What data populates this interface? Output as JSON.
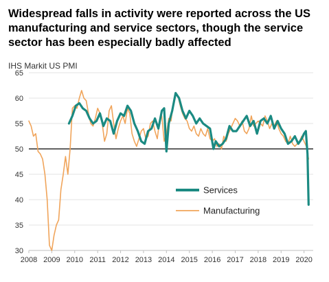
{
  "title": "Widespread falls in activity were reported across the US manufacturing and service sectors, though the service sector has been especially badly affected",
  "subtitle": "IHS Markit US PMI",
  "chart_data": {
    "type": "line",
    "title": "Widespread falls in activity were reported across the US manufacturing and service sectors, though the service sector has been especially badly affected",
    "subtitle": "IHS Markit US PMI",
    "xlabel": "",
    "ylabel": "",
    "xlim": [
      2008.0,
      2020.4
    ],
    "ylim": [
      30,
      65
    ],
    "y_ticks": [
      30,
      35,
      40,
      45,
      50,
      55,
      60,
      65
    ],
    "x_ticks": [
      2008,
      2009,
      2010,
      2011,
      2012,
      2013,
      2014,
      2015,
      2016,
      2017,
      2018,
      2019,
      2020
    ],
    "reference_line": 50,
    "grid": "horizontal",
    "legend_position": "lower-right",
    "series": [
      {
        "name": "Services",
        "color": "#1b8a82",
        "x": [
          2009.75,
          2009.9,
          2010.05,
          2010.2,
          2010.35,
          2010.5,
          2010.65,
          2010.8,
          2010.95,
          2011.1,
          2011.25,
          2011.4,
          2011.55,
          2011.7,
          2011.85,
          2012.0,
          2012.15,
          2012.3,
          2012.45,
          2012.6,
          2012.75,
          2012.9,
          2013.05,
          2013.2,
          2013.35,
          2013.5,
          2013.65,
          2013.8,
          2013.9,
          2014.0,
          2014.1,
          2014.25,
          2014.4,
          2014.55,
          2014.7,
          2014.85,
          2015.0,
          2015.15,
          2015.3,
          2015.45,
          2015.6,
          2015.75,
          2015.9,
          2016.05,
          2016.15,
          2016.3,
          2016.45,
          2016.6,
          2016.75,
          2016.9,
          2017.05,
          2017.2,
          2017.35,
          2017.5,
          2017.65,
          2017.8,
          2017.95,
          2018.1,
          2018.25,
          2018.4,
          2018.55,
          2018.7,
          2018.85,
          2019.0,
          2019.15,
          2019.3,
          2019.45,
          2019.6,
          2019.75,
          2019.9,
          2020.0,
          2020.08,
          2020.15,
          2020.2
        ],
        "values": [
          55.0,
          56.5,
          58.5,
          59.0,
          58.0,
          57.5,
          56.0,
          55.0,
          55.5,
          57.0,
          54.5,
          56.0,
          55.5,
          53.0,
          55.5,
          57.0,
          56.5,
          58.5,
          57.5,
          55.0,
          53.5,
          51.5,
          51.0,
          53.5,
          54.0,
          56.0,
          54.0,
          57.5,
          58.0,
          49.5,
          55.0,
          57.5,
          61.0,
          60.0,
          57.5,
          56.0,
          57.5,
          56.5,
          55.0,
          56.0,
          55.0,
          54.5,
          54.0,
          50.0,
          51.5,
          50.5,
          51.0,
          52.0,
          54.5,
          53.5,
          53.5,
          54.5,
          55.5,
          56.5,
          54.5,
          55.5,
          53.0,
          55.5,
          56.0,
          55.0,
          56.5,
          54.0,
          55.5,
          54.0,
          53.0,
          51.0,
          51.5,
          52.5,
          51.0,
          52.0,
          53.0,
          53.5,
          49.0,
          39.0
        ]
      },
      {
        "name": "Manufacturing",
        "color": "#f0a45a",
        "x": [
          2008.0,
          2008.1,
          2008.2,
          2008.3,
          2008.4,
          2008.5,
          2008.6,
          2008.7,
          2008.8,
          2008.9,
          2009.0,
          2009.1,
          2009.2,
          2009.3,
          2009.4,
          2009.5,
          2009.6,
          2009.7,
          2009.8,
          2009.9,
          2010.0,
          2010.1,
          2010.2,
          2010.3,
          2010.4,
          2010.5,
          2010.6,
          2010.7,
          2010.8,
          2010.9,
          2011.0,
          2011.1,
          2011.2,
          2011.3,
          2011.4,
          2011.5,
          2011.6,
          2011.7,
          2011.8,
          2011.9,
          2012.0,
          2012.1,
          2012.2,
          2012.3,
          2012.4,
          2012.5,
          2012.6,
          2012.7,
          2012.8,
          2012.9,
          2013.0,
          2013.1,
          2013.2,
          2013.3,
          2013.4,
          2013.5,
          2013.6,
          2013.7,
          2013.8,
          2013.9,
          2014.0,
          2014.1,
          2014.2,
          2014.3,
          2014.4,
          2014.5,
          2014.6,
          2014.7,
          2014.8,
          2014.9,
          2015.0,
          2015.1,
          2015.2,
          2015.3,
          2015.4,
          2015.5,
          2015.6,
          2015.7,
          2015.8,
          2015.9,
          2016.0,
          2016.1,
          2016.2,
          2016.3,
          2016.4,
          2016.5,
          2016.6,
          2016.7,
          2016.8,
          2016.9,
          2017.0,
          2017.1,
          2017.2,
          2017.3,
          2017.4,
          2017.5,
          2017.6,
          2017.7,
          2017.8,
          2017.9,
          2018.0,
          2018.1,
          2018.2,
          2018.3,
          2018.4,
          2018.5,
          2018.6,
          2018.7,
          2018.8,
          2018.9,
          2019.0,
          2019.1,
          2019.2,
          2019.3,
          2019.4,
          2019.5,
          2019.6,
          2019.7,
          2019.8,
          2019.9,
          2020.0,
          2020.1,
          2020.2
        ],
        "values": [
          55.5,
          54.5,
          52.5,
          53.0,
          49.5,
          49.0,
          48.0,
          45.0,
          40.0,
          31.0,
          30.0,
          33.0,
          35.0,
          36.0,
          42.0,
          45.0,
          48.5,
          45.0,
          50.0,
          58.0,
          58.5,
          58.0,
          60.0,
          61.5,
          60.0,
          59.5,
          57.0,
          55.0,
          54.5,
          56.0,
          58.0,
          57.0,
          55.0,
          51.5,
          53.0,
          57.5,
          58.5,
          55.0,
          52.0,
          54.0,
          55.5,
          56.5,
          55.0,
          58.0,
          57.0,
          53.0,
          51.5,
          50.5,
          52.0,
          53.5,
          54.0,
          52.0,
          52.5,
          55.0,
          55.5,
          53.5,
          52.0,
          55.5,
          56.5,
          51.5,
          53.0,
          56.0,
          55.5,
          59.0,
          61.0,
          60.5,
          58.5,
          57.0,
          56.0,
          55.5,
          54.0,
          53.5,
          54.5,
          53.0,
          52.5,
          54.0,
          53.0,
          52.5,
          54.0,
          52.0,
          51.5,
          52.0,
          50.5,
          51.0,
          50.0,
          52.5,
          51.5,
          53.0,
          54.0,
          55.0,
          56.0,
          55.5,
          54.5,
          55.5,
          53.5,
          53.0,
          54.0,
          56.5,
          54.5,
          55.0,
          55.5,
          55.0,
          54.5,
          56.5,
          55.5,
          54.0,
          55.0,
          54.5,
          55.5,
          54.0,
          53.0,
          52.5,
          51.5,
          51.0,
          52.5,
          51.0,
          50.5,
          51.0,
          51.5,
          52.5,
          51.5,
          50.5,
          48.0
        ]
      }
    ]
  }
}
